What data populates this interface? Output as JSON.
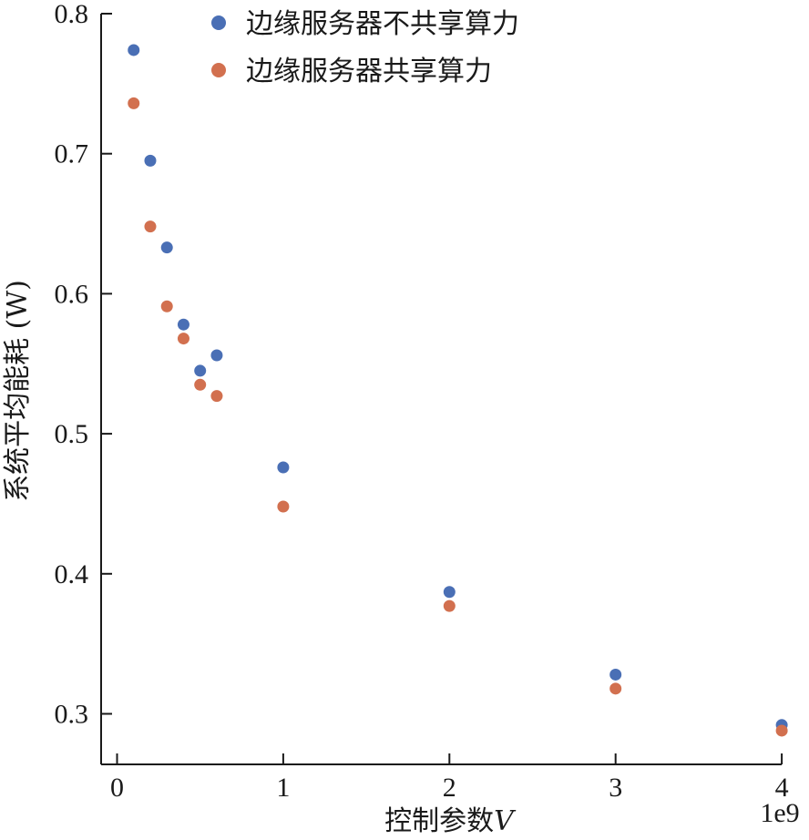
{
  "chart_data": {
    "type": "scatter",
    "title": "",
    "xlabel": "控制参数",
    "xlabel_var": "V",
    "ylabel": "系统平均能耗 (W)",
    "x_offset_label": "1e9",
    "xlim": [
      -0.1,
      4.0
    ],
    "ylim": [
      0.272,
      0.8
    ],
    "xticks": [
      0,
      1,
      2,
      3,
      4
    ],
    "yticks": [
      0.3,
      0.4,
      0.5,
      0.6,
      0.7,
      0.8
    ],
    "grid": false,
    "legend_position": "top",
    "series": [
      {
        "name": "边缘服务器不共享算力",
        "color": "#4a6fb5",
        "x": [
          0.1,
          0.2,
          0.3,
          0.4,
          0.5,
          0.6,
          1,
          2,
          3,
          4
        ],
        "y": [
          0.774,
          0.695,
          0.633,
          0.578,
          0.545,
          0.556,
          0.476,
          0.387,
          0.328,
          0.292
        ]
      },
      {
        "name": "边缘服务器共享算力",
        "color": "#d2704f",
        "x": [
          0.1,
          0.2,
          0.3,
          0.4,
          0.5,
          0.6,
          1,
          2,
          3,
          4
        ],
        "y": [
          0.736,
          0.648,
          0.591,
          0.568,
          0.535,
          0.527,
          0.448,
          0.377,
          0.318,
          0.288
        ]
      }
    ]
  }
}
